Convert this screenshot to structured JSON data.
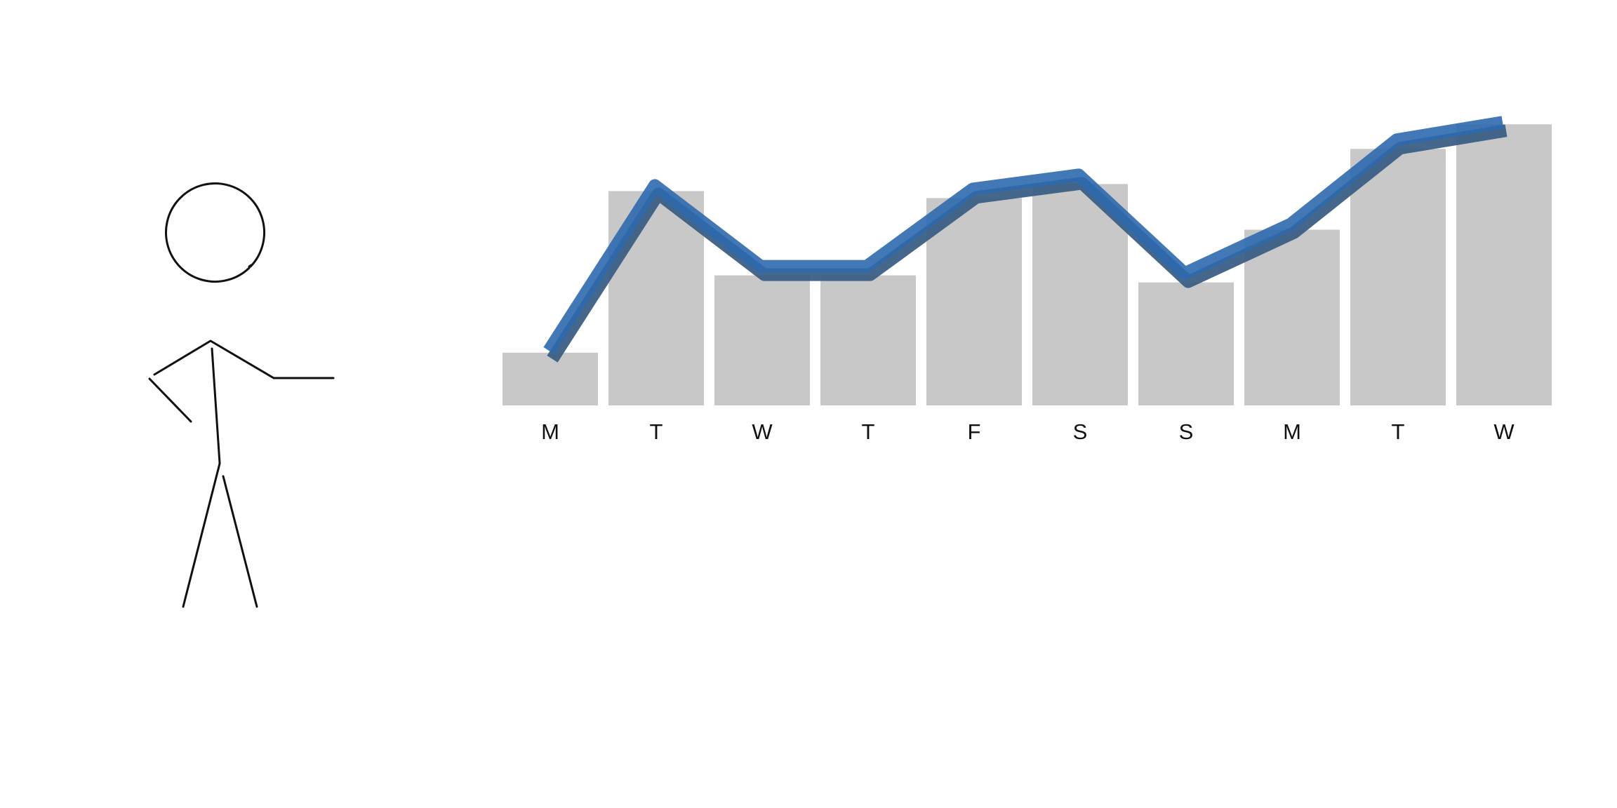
{
  "chart_data": {
    "type": "bar",
    "title": "",
    "xlabel": "",
    "ylabel": "",
    "categories": [
      "M",
      "T",
      "W",
      "T",
      "F",
      "S",
      "S",
      "M",
      "T",
      "W"
    ],
    "series": [
      {
        "type": "bar",
        "values": [
          15,
          61,
          37,
          37,
          59,
          63,
          35,
          50,
          73,
          80
        ]
      },
      {
        "type": "line",
        "values": [
          15,
          62,
          39,
          39,
          61,
          65,
          37,
          51,
          75,
          80
        ]
      }
    ],
    "ylim": [
      0,
      100
    ],
    "grid": false,
    "legend": "none",
    "colors": {
      "bar": "#c8c8c8",
      "line": "#2e69ad",
      "line_dark": "#3b5f86"
    }
  },
  "decoration": {
    "stick_figure_icon": "stick-figure-pointing-icon"
  }
}
